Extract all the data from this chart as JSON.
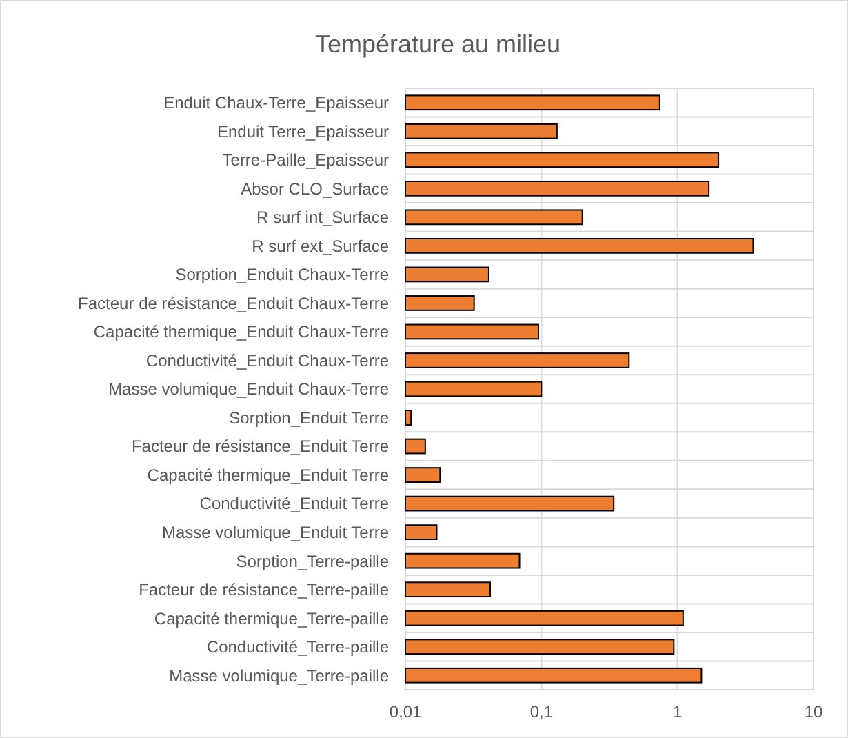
{
  "chart_data": {
    "type": "bar",
    "orientation": "horizontal",
    "title": "Température au milieu",
    "categories": [
      "Enduit Chaux-Terre_Epaisseur",
      "Enduit Terre_Epaisseur",
      "Terre-Paille_Epaisseur",
      "Absor CLO_Surface",
      "R surf int_Surface",
      "R surf ext_Surface",
      "Sorption_Enduit Chaux-Terre",
      "Facteur de résistance_Enduit Chaux-Terre",
      "Capacité thermique_Enduit Chaux-Terre",
      "Conductivité_Enduit Chaux-Terre",
      "Masse volumique_Enduit Chaux-Terre",
      "Sorption_Enduit Terre",
      "Facteur de résistance_Enduit Terre",
      "Capacité thermique_Enduit Terre",
      "Conductivité_Enduit Terre",
      "Masse volumique_Enduit Terre",
      "Sorption_Terre-paille",
      "Facteur de résistance_Terre-paille",
      "Capacité thermique_Terre-paille",
      "Conductivité_Terre-paille",
      "Masse volumique_Terre-paille"
    ],
    "values": [
      0.74,
      0.13,
      2.0,
      1.7,
      0.2,
      3.6,
      0.041,
      0.032,
      0.095,
      0.44,
      0.1,
      0.011,
      0.014,
      0.018,
      0.34,
      0.017,
      0.069,
      0.042,
      1.1,
      0.94,
      1.5
    ],
    "color": "#ed7d31",
    "log": "x",
    "xlim": [
      0.01,
      10
    ],
    "xticks": [
      {
        "value": 0.01,
        "label": "0,01"
      },
      {
        "value": 0.1,
        "label": "0,1"
      },
      1,
      10
    ],
    "grid": true
  }
}
